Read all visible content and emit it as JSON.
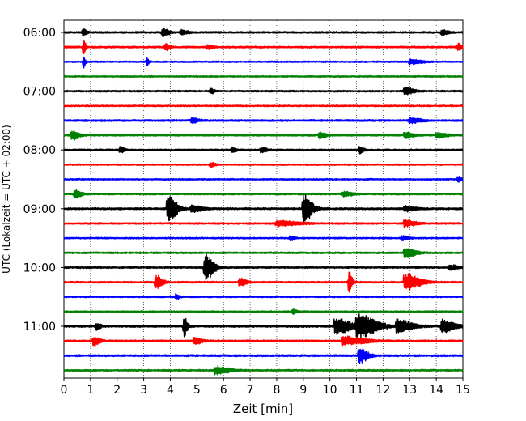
{
  "chart_data": {
    "type": "line",
    "subtype": "helicorder",
    "xlabel": "Zeit  [min]",
    "ylabel": "UTC (Lokalzeit = UTC + 02:00)",
    "xlim": [
      0,
      15
    ],
    "x_ticks": [
      "0",
      "1",
      "2",
      "3",
      "4",
      "5",
      "6",
      "7",
      "8",
      "9",
      "10",
      "11",
      "12",
      "13",
      "14",
      "15"
    ],
    "grid": "vertical dotted lines at each minute",
    "row_minutes": 15,
    "y_tick_labels": [
      "06:00",
      "07:00",
      "08:00",
      "09:00",
      "10:00",
      "11:00"
    ],
    "color_cycle": [
      "#000000",
      "#ff0000",
      "#0000ff",
      "#008000"
    ],
    "rows": [
      {
        "start": "06:00",
        "color": "#000000",
        "noise": 0.8,
        "events": [
          {
            "t": 0.7,
            "amp": 4,
            "dur": 0.2
          },
          {
            "t": 3.7,
            "amp": 5,
            "dur": 0.3
          },
          {
            "t": 4.4,
            "amp": 3,
            "dur": 0.3
          },
          {
            "t": 14.2,
            "amp": 3,
            "dur": 0.3
          }
        ]
      },
      {
        "start": "06:15",
        "color": "#ff0000",
        "noise": 0.8,
        "events": [
          {
            "t": 0.72,
            "amp": 14,
            "dur": 0.1
          },
          {
            "t": 3.8,
            "amp": 4,
            "dur": 0.2
          },
          {
            "t": 5.4,
            "amp": 3,
            "dur": 0.2
          },
          {
            "t": 14.8,
            "amp": 5,
            "dur": 0.2
          }
        ]
      },
      {
        "start": "06:30",
        "color": "#0000ff",
        "noise": 0.7,
        "events": [
          {
            "t": 0.72,
            "amp": 8,
            "dur": 0.1
          },
          {
            "t": 3.1,
            "amp": 6,
            "dur": 0.1
          },
          {
            "t": 13.0,
            "amp": 3,
            "dur": 0.6
          }
        ]
      },
      {
        "start": "06:45",
        "color": "#008000",
        "noise": 0.7,
        "events": []
      },
      {
        "start": "07:00",
        "color": "#000000",
        "noise": 0.8,
        "events": [
          {
            "t": 5.5,
            "amp": 3,
            "dur": 0.2
          },
          {
            "t": 12.8,
            "amp": 5,
            "dur": 0.4
          }
        ]
      },
      {
        "start": "07:15",
        "color": "#ff0000",
        "noise": 0.7,
        "events": []
      },
      {
        "start": "07:30",
        "color": "#0000ff",
        "noise": 0.9,
        "events": [
          {
            "t": 4.8,
            "amp": 3,
            "dur": 0.3
          },
          {
            "t": 13.0,
            "amp": 3,
            "dur": 0.5
          }
        ]
      },
      {
        "start": "07:45",
        "color": "#008000",
        "noise": 0.8,
        "events": [
          {
            "t": 0.3,
            "amp": 6,
            "dur": 0.3
          },
          {
            "t": 9.6,
            "amp": 4,
            "dur": 0.3
          },
          {
            "t": 12.8,
            "amp": 4,
            "dur": 0.4
          },
          {
            "t": 14.0,
            "amp": 3,
            "dur": 0.5
          }
        ]
      },
      {
        "start": "08:00",
        "color": "#000000",
        "noise": 0.8,
        "events": [
          {
            "t": 2.1,
            "amp": 4,
            "dur": 0.2
          },
          {
            "t": 6.3,
            "amp": 3,
            "dur": 0.2
          },
          {
            "t": 7.4,
            "amp": 3,
            "dur": 0.3
          },
          {
            "t": 11.1,
            "amp": 4,
            "dur": 0.2
          }
        ]
      },
      {
        "start": "08:15",
        "color": "#ff0000",
        "noise": 0.7,
        "events": [
          {
            "t": 5.5,
            "amp": 3,
            "dur": 0.2
          }
        ]
      },
      {
        "start": "08:30",
        "color": "#0000ff",
        "noise": 0.7,
        "events": [
          {
            "t": 14.8,
            "amp": 3,
            "dur": 0.2
          }
        ]
      },
      {
        "start": "08:45",
        "color": "#008000",
        "noise": 0.8,
        "events": [
          {
            "t": 0.4,
            "amp": 5,
            "dur": 0.3
          },
          {
            "t": 10.5,
            "amp": 3,
            "dur": 0.4
          }
        ]
      },
      {
        "start": "09:00",
        "color": "#000000",
        "noise": 0.9,
        "events": [
          {
            "t": 3.9,
            "amp": 17,
            "dur": 0.4
          },
          {
            "t": 4.8,
            "amp": 4,
            "dur": 0.5
          },
          {
            "t": 9.0,
            "amp": 17,
            "dur": 0.4
          },
          {
            "t": 12.8,
            "amp": 3,
            "dur": 0.5
          }
        ]
      },
      {
        "start": "09:15",
        "color": "#ff0000",
        "noise": 0.8,
        "events": [
          {
            "t": 8.0,
            "amp": 3,
            "dur": 1.0
          },
          {
            "t": 12.8,
            "amp": 4,
            "dur": 0.5
          }
        ]
      },
      {
        "start": "09:30",
        "color": "#0000ff",
        "noise": 0.7,
        "events": [
          {
            "t": 8.5,
            "amp": 3,
            "dur": 0.2
          },
          {
            "t": 12.7,
            "amp": 3,
            "dur": 0.3
          }
        ]
      },
      {
        "start": "09:45",
        "color": "#008000",
        "noise": 0.8,
        "events": [
          {
            "t": 12.8,
            "amp": 6,
            "dur": 0.5
          }
        ]
      },
      {
        "start": "10:00",
        "color": "#000000",
        "noise": 0.8,
        "events": [
          {
            "t": 5.3,
            "amp": 17,
            "dur": 0.4
          },
          {
            "t": 14.5,
            "amp": 3,
            "dur": 0.4
          }
        ]
      },
      {
        "start": "10:15",
        "color": "#ff0000",
        "noise": 0.8,
        "events": [
          {
            "t": 3.45,
            "amp": 10,
            "dur": 0.3
          },
          {
            "t": 6.6,
            "amp": 5,
            "dur": 0.3
          },
          {
            "t": 10.7,
            "amp": 14,
            "dur": 0.15
          },
          {
            "t": 12.8,
            "amp": 10,
            "dur": 0.7
          }
        ]
      },
      {
        "start": "10:30",
        "color": "#0000ff",
        "noise": 0.7,
        "events": [
          {
            "t": 4.2,
            "amp": 3,
            "dur": 0.2
          }
        ]
      },
      {
        "start": "10:45",
        "color": "#008000",
        "noise": 0.7,
        "events": [
          {
            "t": 8.6,
            "amp": 3,
            "dur": 0.2
          }
        ]
      },
      {
        "start": "11:00",
        "color": "#000000",
        "noise": 1.0,
        "events": [
          {
            "t": 1.2,
            "amp": 4,
            "dur": 0.2
          },
          {
            "t": 4.5,
            "amp": 14,
            "dur": 0.15
          },
          {
            "t": 10.2,
            "amp": 10,
            "dur": 0.7
          },
          {
            "t": 11.0,
            "amp": 14,
            "dur": 0.9
          },
          {
            "t": 12.5,
            "amp": 8,
            "dur": 0.7
          },
          {
            "t": 14.2,
            "amp": 8,
            "dur": 0.6
          }
        ]
      },
      {
        "start": "11:15",
        "color": "#ff0000",
        "noise": 0.9,
        "events": [
          {
            "t": 1.1,
            "amp": 5,
            "dur": 0.3
          },
          {
            "t": 4.9,
            "amp": 5,
            "dur": 0.3
          },
          {
            "t": 10.5,
            "amp": 5,
            "dur": 1.0
          }
        ]
      },
      {
        "start": "11:30",
        "color": "#0000ff",
        "noise": 0.9,
        "events": [
          {
            "t": 11.1,
            "amp": 9,
            "dur": 0.4
          }
        ]
      },
      {
        "start": "11:45",
        "color": "#008000",
        "noise": 0.8,
        "events": [
          {
            "t": 5.7,
            "amp": 5,
            "dur": 0.6
          }
        ]
      }
    ]
  }
}
